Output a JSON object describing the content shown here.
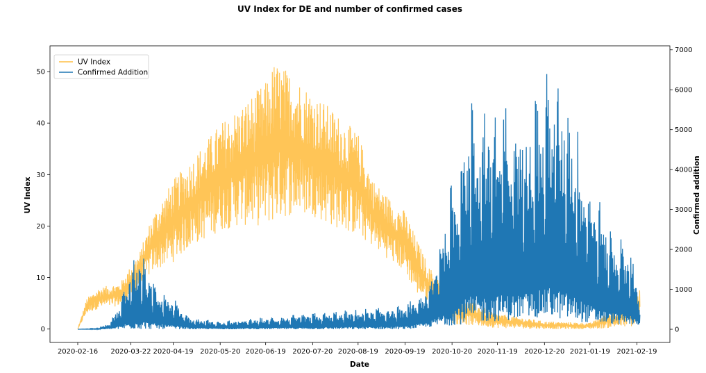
{
  "chart_data": {
    "type": "line",
    "title": "UV Index for DE and number of confirmed cases",
    "xlabel": "Date",
    "ylabel_left": "UV Index",
    "ylabel_right": "Confirmed addition",
    "x_ticks": [
      "2020-02-16",
      "2020-03-22",
      "2020-04-19",
      "2020-05-20",
      "2020-06-19",
      "2020-07-20",
      "2020-08-19",
      "2020-09-19",
      "2020-10-20",
      "2020-11-19",
      "2020-12-20",
      "2021-01-19",
      "2021-02-19"
    ],
    "y_left_ticks": [
      0,
      10,
      20,
      30,
      40,
      50
    ],
    "y_right_ticks": [
      0,
      1000,
      2000,
      3000,
      4000,
      5000,
      6000,
      7000
    ],
    "ylim_left": [
      -2.6,
      55
    ],
    "ylim_right": [
      -330,
      7100
    ],
    "x_range": [
      "2020-02-16",
      "2021-02-22"
    ],
    "legend": {
      "position": "upper-left"
    },
    "series": [
      {
        "name": "UV Index",
        "axis": "left",
        "color": "#ffbf45",
        "upper_envelope": [
          [
            "2020-02-16",
            0
          ],
          [
            "2020-02-22",
            6
          ],
          [
            "2020-03-01",
            8
          ],
          [
            "2020-03-15",
            9
          ],
          [
            "2020-03-28",
            15
          ],
          [
            "2020-04-05",
            22
          ],
          [
            "2020-04-19",
            29
          ],
          [
            "2020-05-01",
            33
          ],
          [
            "2020-05-20",
            40
          ],
          [
            "2020-06-01",
            43
          ],
          [
            "2020-06-19",
            48
          ],
          [
            "2020-06-25",
            52
          ],
          [
            "2020-07-05",
            50
          ],
          [
            "2020-07-20",
            46
          ],
          [
            "2020-08-01",
            43
          ],
          [
            "2020-08-19",
            38
          ],
          [
            "2020-08-29",
            29
          ],
          [
            "2020-09-10",
            25
          ],
          [
            "2020-09-19",
            23
          ],
          [
            "2020-09-26",
            18
          ],
          [
            "2020-10-05",
            12
          ],
          [
            "2020-10-20",
            7
          ],
          [
            "2020-11-19",
            3
          ],
          [
            "2020-12-20",
            1.5
          ],
          [
            "2021-01-19",
            1.2
          ],
          [
            "2021-02-19",
            6
          ],
          [
            "2021-02-21",
            8
          ]
        ],
        "lower_envelope": [
          [
            "2020-02-16",
            0
          ],
          [
            "2020-02-22",
            3
          ],
          [
            "2020-03-01",
            4
          ],
          [
            "2020-03-15",
            4.5
          ],
          [
            "2020-03-28",
            8
          ],
          [
            "2020-04-05",
            11
          ],
          [
            "2020-04-19",
            13
          ],
          [
            "2020-05-01",
            16
          ],
          [
            "2020-05-20",
            19
          ],
          [
            "2020-06-01",
            20
          ],
          [
            "2020-06-19",
            20
          ],
          [
            "2020-07-05",
            22
          ],
          [
            "2020-07-20",
            22
          ],
          [
            "2020-08-01",
            20
          ],
          [
            "2020-08-19",
            18
          ],
          [
            "2020-08-29",
            16
          ],
          [
            "2020-09-10",
            13
          ],
          [
            "2020-09-19",
            11
          ],
          [
            "2020-09-26",
            7
          ],
          [
            "2020-10-05",
            5
          ],
          [
            "2020-10-20",
            1
          ],
          [
            "2020-11-19",
            0.2
          ],
          [
            "2020-12-20",
            0
          ],
          [
            "2021-01-19",
            0
          ],
          [
            "2021-02-19",
            0.5
          ],
          [
            "2021-02-21",
            2
          ]
        ]
      },
      {
        "name": "Confirmed Addition",
        "axis": "right",
        "color": "#1f77b4",
        "upper_envelope": [
          [
            "2020-02-16",
            0
          ],
          [
            "2020-03-01",
            30
          ],
          [
            "2020-03-08",
            200
          ],
          [
            "2020-03-15",
            700
          ],
          [
            "2020-03-22",
            1700
          ],
          [
            "2020-03-28",
            2000
          ],
          [
            "2020-04-05",
            1300
          ],
          [
            "2020-04-19",
            800
          ],
          [
            "2020-05-01",
            300
          ],
          [
            "2020-05-20",
            200
          ],
          [
            "2020-06-19",
            300
          ],
          [
            "2020-07-20",
            400
          ],
          [
            "2020-08-19",
            500
          ],
          [
            "2020-09-19",
            600
          ],
          [
            "2020-10-05",
            1100
          ],
          [
            "2020-10-20",
            3800
          ],
          [
            "2020-10-31",
            5800
          ],
          [
            "2020-11-19",
            5700
          ],
          [
            "2020-12-01",
            5600
          ],
          [
            "2020-12-20",
            6100
          ],
          [
            "2020-12-23",
            6800
          ],
          [
            "2021-01-05",
            5900
          ],
          [
            "2021-01-19",
            3900
          ],
          [
            "2021-02-01",
            2600
          ],
          [
            "2021-02-15",
            2100
          ],
          [
            "2021-02-21",
            700
          ]
        ],
        "lower_envelope": [
          [
            "2020-02-16",
            0
          ],
          [
            "2020-03-15",
            0
          ],
          [
            "2020-04-19",
            0
          ],
          [
            "2020-09-19",
            0
          ],
          [
            "2020-10-20",
            100
          ],
          [
            "2020-11-19",
            200
          ],
          [
            "2020-12-20",
            300
          ],
          [
            "2021-01-19",
            150
          ],
          [
            "2021-02-21",
            100
          ]
        ]
      }
    ]
  }
}
